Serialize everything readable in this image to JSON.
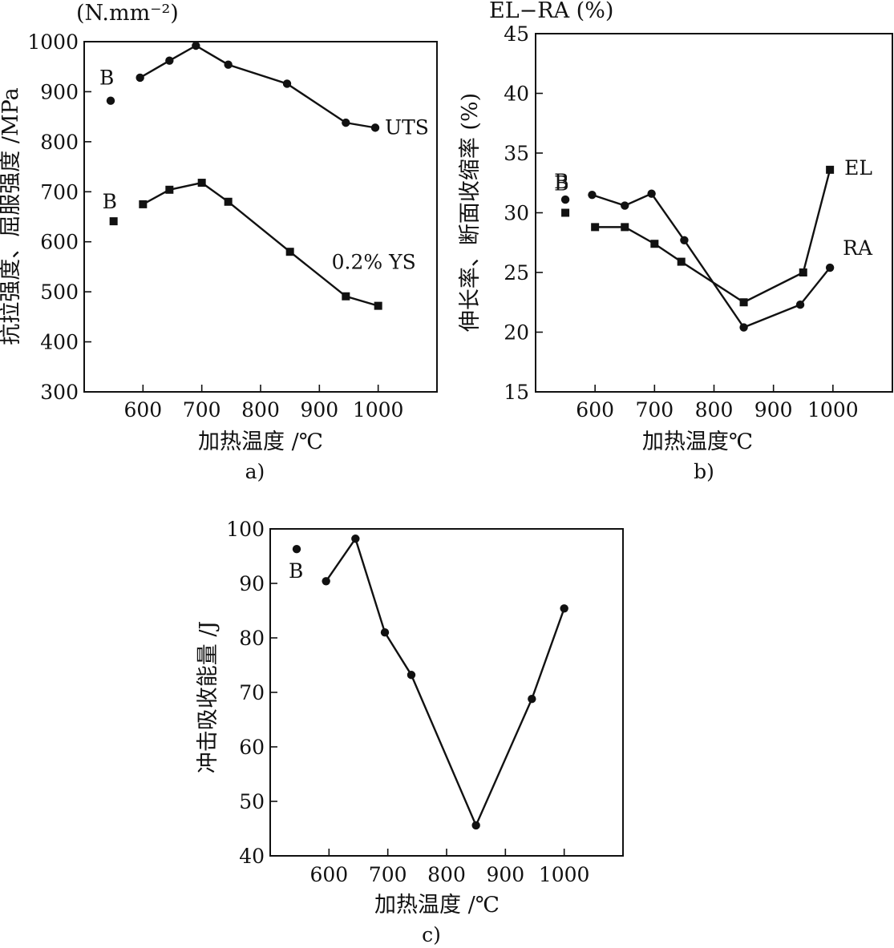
{
  "chart_data": [
    {
      "panel": "a)",
      "type": "line",
      "ylabel": "抗拉强度、屈服强度 /MPa",
      "ylabel_top": "(N.mm⁻²)",
      "xlabel": "加热温度 /℃",
      "xlim": [
        500,
        1100
      ],
      "ylim": [
        300,
        1000
      ],
      "xticks": [
        600,
        700,
        800,
        900,
        1000
      ],
      "yticks": [
        300,
        400,
        500,
        600,
        700,
        800,
        900,
        1000
      ],
      "grid": false,
      "series": [
        {
          "name": "UTS",
          "marker": "circle",
          "x": [
            595,
            645,
            690,
            745,
            845,
            945,
            995
          ],
          "y": [
            928,
            962,
            992,
            954,
            916,
            838,
            828
          ],
          "base_label": "B",
          "base_point": {
            "x": 545,
            "y": 882
          }
        },
        {
          "name": "0.2% YS",
          "marker": "square",
          "x": [
            600,
            645,
            700,
            745,
            850,
            945,
            1000
          ],
          "y": [
            675,
            704,
            718,
            680,
            580,
            491,
            472
          ],
          "base_label": "B",
          "base_point": {
            "x": 550,
            "y": 641
          }
        }
      ]
    },
    {
      "panel": "b)",
      "type": "line",
      "ylabel": "伸长率、断面收缩率 (%)",
      "ylabel_top": "EL−RA (%)",
      "xlabel": "加热温度℃",
      "xlim": [
        500,
        1100
      ],
      "ylim": [
        15,
        45
      ],
      "xticks": [
        600,
        700,
        800,
        900,
        1000
      ],
      "yticks": [
        15,
        20,
        25,
        30,
        35,
        40,
        45
      ],
      "grid": false,
      "series": [
        {
          "name": "EL",
          "marker": "square",
          "x": [
            600,
            650,
            700,
            745,
            850,
            950,
            995
          ],
          "y": [
            28.8,
            28.8,
            27.4,
            25.9,
            22.5,
            25.0,
            33.6
          ],
          "base_label": "B",
          "base_point": {
            "x": 550,
            "y": 30.0
          }
        },
        {
          "name": "RA",
          "marker": "circle",
          "x": [
            595,
            650,
            695,
            750,
            850,
            945,
            995
          ],
          "y": [
            31.5,
            30.6,
            31.6,
            27.7,
            20.4,
            22.3,
            25.4
          ],
          "base_label": "B",
          "base_point": {
            "x": 550,
            "y": 31.1
          }
        }
      ]
    },
    {
      "panel": "c)",
      "type": "line",
      "ylabel": "冲击吸收能量 /J",
      "xlabel": "加热温度 /℃",
      "xlim": [
        500,
        1100
      ],
      "ylim": [
        40,
        100
      ],
      "xticks": [
        600,
        700,
        800,
        900,
        1000
      ],
      "yticks": [
        40,
        50,
        60,
        70,
        80,
        90,
        100
      ],
      "grid": false,
      "series": [
        {
          "name": "",
          "marker": "circle",
          "x": [
            595,
            645,
            695,
            740,
            850,
            945,
            1000
          ],
          "y": [
            90.4,
            98.2,
            81.0,
            73.2,
            45.6,
            68.8,
            85.4
          ],
          "base_label": "B",
          "base_point": {
            "x": 545,
            "y": 96.3
          }
        }
      ]
    }
  ]
}
